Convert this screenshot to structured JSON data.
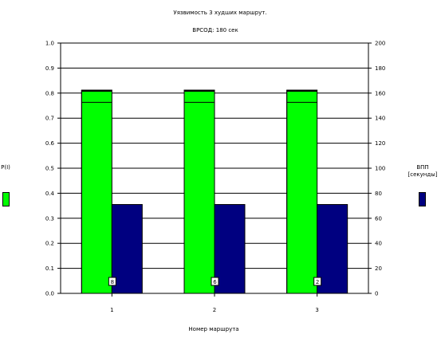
{
  "chart_data": {
    "type": "bar",
    "title": "Уязвимость 3 худших маршрут.",
    "subtitle": "ВРСОД: 180 сек",
    "xlabel": "Номер маршрута",
    "categories": [
      "1",
      "2",
      "3"
    ],
    "y_left": {
      "label": "P(I)",
      "ylim": [
        0,
        1.0
      ],
      "ticks": [
        "0.0",
        "0.1",
        "0.2",
        "0.3",
        "0.4",
        "0.5",
        "0.6",
        "0.7",
        "0.8",
        "0.9",
        "1.0"
      ]
    },
    "y_right": {
      "label_line1": "ВПП",
      "label_line2": "[секунды]",
      "ylim": [
        0,
        200
      ],
      "ticks": [
        "0",
        "20",
        "40",
        "60",
        "80",
        "100",
        "120",
        "140",
        "160",
        "180",
        "200"
      ]
    },
    "series": [
      {
        "axis": "left",
        "color": "#00ff00",
        "values": [
          0.812,
          0.812,
          0.812
        ],
        "inner_line": [
          0.763,
          0.763,
          0.763
        ]
      },
      {
        "axis": "right",
        "color": "#000080",
        "values": [
          71,
          71,
          71
        ]
      }
    ],
    "bar_labels": [
      "8",
      "6",
      "2"
    ],
    "grid": true
  }
}
